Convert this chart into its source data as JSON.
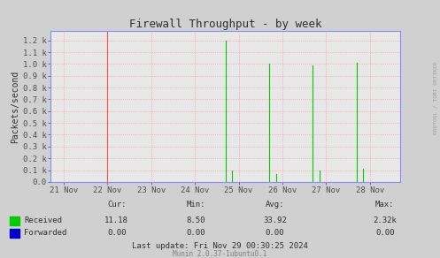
{
  "title": "Firewall Throughput - by week",
  "ylabel": "Packets/second",
  "bg_color": "#d0d0d0",
  "plot_bg_color": "#e8e8e8",
  "grid_color": "#ff9999",
  "axis_color": "#8888ff",
  "y_ticks_labels": [
    "0.0",
    "0.1 k",
    "0.2 k",
    "0.3 k",
    "0.4 k",
    "0.5 k",
    "0.6 k",
    "0.7 k",
    "0.8 k",
    "0.9 k",
    "1.0 k",
    "1.1 k",
    "1.2 k"
  ],
  "y_ticks_values": [
    0,
    100,
    200,
    300,
    400,
    500,
    600,
    700,
    800,
    900,
    1000,
    1100,
    1200
  ],
  "x_tick_labels": [
    "21 Nov",
    "22 Nov",
    "23 Nov",
    "24 Nov",
    "25 Nov",
    "26 Nov",
    "27 Nov",
    "28 Nov"
  ],
  "x_tick_positions": [
    0,
    1,
    2,
    3,
    4,
    5,
    6,
    7
  ],
  "xlim": [
    -0.3,
    7.7
  ],
  "ylim": [
    0,
    1280
  ],
  "received_color": "#00cc00",
  "forwarded_color": "#0000cc",
  "rrdtool_text": "RRDTOOL / TOBI OETIKER",
  "legend_labels": [
    "Received",
    "Forwarded"
  ],
  "stats_header": [
    "Cur:",
    "Min:",
    "Avg:",
    "Max:"
  ],
  "stats_received": [
    "11.18",
    "8.50",
    "33.92",
    "2.32k"
  ],
  "stats_forwarded": [
    "0.00",
    "0.00",
    "0.00",
    "0.00"
  ],
  "last_update": "Last update: Fri Nov 29 00:30:25 2024",
  "munin_text": "Munin 2.0.37-1ubuntu0.1",
  "spike_x": [
    3.7,
    3.85,
    4.7,
    4.85,
    5.7,
    5.85,
    6.7,
    6.85
  ],
  "spike_h": [
    1200,
    95,
    1000,
    70,
    990,
    95,
    1010,
    110
  ],
  "redline_x": 1.0
}
